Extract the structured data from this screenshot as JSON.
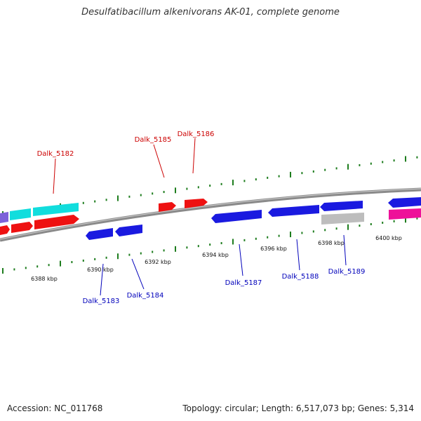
{
  "title": "Desulfatibacillum alkenivorans AK-01, complete genome",
  "accession": "Accession: NC_011768",
  "summary": "Topology: circular; Length: 6,517,073 bp; Genes: 5,314",
  "colors": {
    "backbone": "#8a8a8a",
    "tick": "#1e7d1e",
    "forward_label": "#cc0000",
    "reverse_label": "#0000bb",
    "red": "#ee1111",
    "blue": "#1a1ae0",
    "cyan": "#11dddd",
    "grey": "#bdbdbd",
    "magenta": "#ee1199",
    "purple": "#7b62d9"
  },
  "scale": {
    "unit": "kbp",
    "labels": [
      {
        "kbp": 6388,
        "text": "6388 kbp"
      },
      {
        "kbp": 6390,
        "text": "6390 kbp"
      },
      {
        "kbp": 6392,
        "text": "6392 kbp"
      },
      {
        "kbp": 6394,
        "text": "6394 kbp"
      },
      {
        "kbp": 6396,
        "text": "6396 kbp"
      },
      {
        "kbp": 6398,
        "text": "6398 kbp"
      },
      {
        "kbp": 6400,
        "text": "6400 kbp"
      }
    ]
  },
  "gene_labels": [
    {
      "name": "Dalk_5182",
      "strand": "forward"
    },
    {
      "name": "Dalk_5185",
      "strand": "forward"
    },
    {
      "name": "Dalk_5186",
      "strand": "forward"
    },
    {
      "name": "Dalk_5183",
      "strand": "reverse"
    },
    {
      "name": "Dalk_5184",
      "strand": "reverse"
    },
    {
      "name": "Dalk_5187",
      "strand": "reverse"
    },
    {
      "name": "Dalk_5188",
      "strand": "reverse"
    },
    {
      "name": "Dalk_5189",
      "strand": "reverse"
    }
  ]
}
